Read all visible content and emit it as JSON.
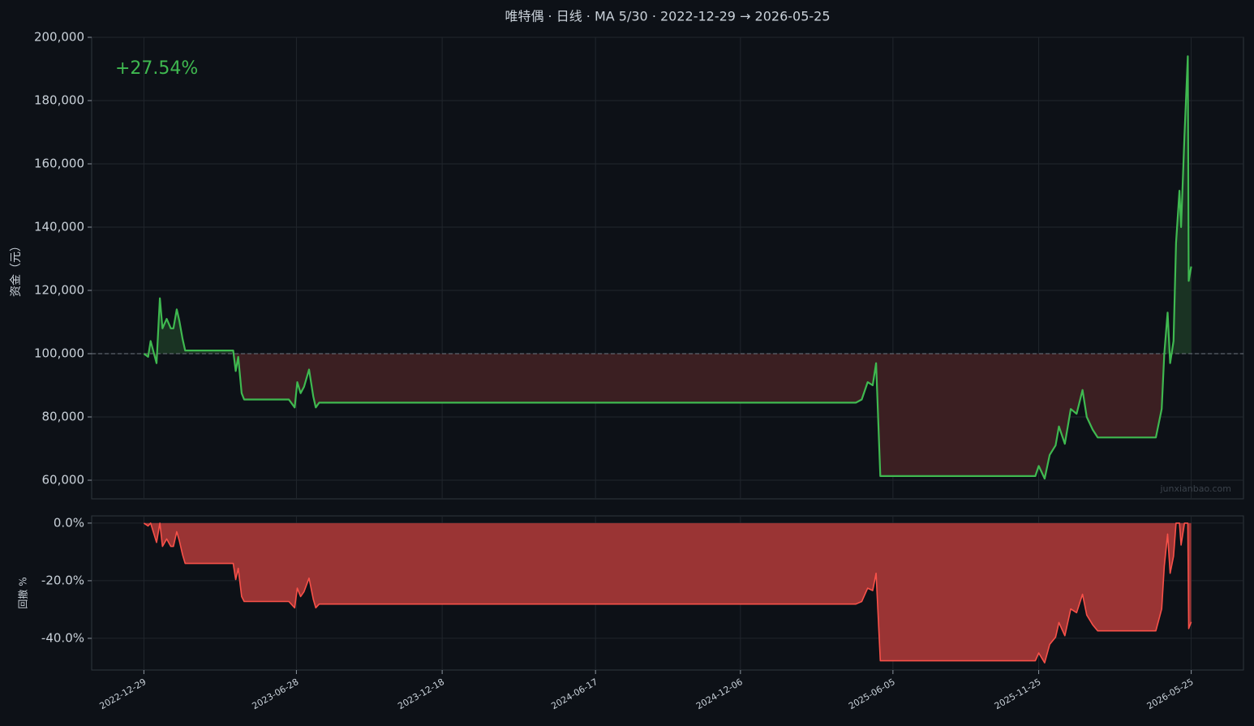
{
  "chart_data": [
    {
      "type": "line",
      "title": "唯特偶 · 日线 · MA 5/30 · 2022-12-29 → 2026-05-25",
      "y_label": "资金（元）",
      "annotation": "+27.54%",
      "watermark": "junxianbao.com",
      "baseline": 100000,
      "grid": true,
      "xlim": [
        "2022-10-28",
        "2026-07-26"
      ],
      "ylim": [
        54100,
        200000
      ],
      "yticks": [
        {
          "value": 60000,
          "label": "60,000"
        },
        {
          "value": 80000,
          "label": "80,000"
        },
        {
          "value": 100000,
          "label": "100,000"
        },
        {
          "value": 120000,
          "label": "120,000"
        },
        {
          "value": 140000,
          "label": "140,000"
        },
        {
          "value": 160000,
          "label": "160,000"
        },
        {
          "value": 180000,
          "label": "180,000"
        },
        {
          "value": 200000,
          "label": "200,000"
        }
      ],
      "x": [
        "2022-12-29",
        "2023-01-03",
        "2023-01-06",
        "2023-01-13",
        "2023-01-17",
        "2023-01-20",
        "2023-01-25",
        "2023-01-30",
        "2023-02-02",
        "2023-02-06",
        "2023-02-09",
        "2023-02-13",
        "2023-02-16",
        "2023-04-14",
        "2023-04-17",
        "2023-04-20",
        "2023-04-24",
        "2023-04-27",
        "2023-06-19",
        "2023-06-26",
        "2023-06-29",
        "2023-07-03",
        "2023-07-07",
        "2023-07-13",
        "2023-07-18",
        "2023-07-21",
        "2023-07-25",
        "2025-04-22",
        "2025-04-29",
        "2025-05-06",
        "2025-05-12",
        "2025-05-16",
        "2025-05-21",
        "2025-11-21",
        "2025-11-25",
        "2025-12-02",
        "2025-12-08",
        "2025-12-15",
        "2025-12-19",
        "2025-12-26",
        "2026-01-02",
        "2026-01-09",
        "2026-01-16",
        "2026-01-21",
        "2026-01-28",
        "2026-02-03",
        "2026-04-13",
        "2026-04-20",
        "2026-04-23",
        "2026-04-27",
        "2026-04-30",
        "2026-05-04",
        "2026-05-07",
        "2026-05-11",
        "2026-05-13",
        "2026-05-17",
        "2026-05-21",
        "2026-05-22",
        "2026-05-25"
      ],
      "series": [
        {
          "color": "#3fb950",
          "fill_up": "#1a3323",
          "fill_down": "#3b1f22",
          "values": [
            100000,
            99000,
            104000,
            97000,
            117500,
            108000,
            111000,
            108000,
            108000,
            114000,
            110500,
            104500,
            101000,
            101000,
            94500,
            99000,
            87500,
            85500,
            85500,
            83000,
            91000,
            87500,
            89500,
            95000,
            86500,
            83000,
            84500,
            84500,
            85500,
            91000,
            90000,
            97000,
            61300,
            61300,
            64500,
            60500,
            68000,
            71000,
            77000,
            71500,
            82500,
            81000,
            88500,
            80000,
            76000,
            73500,
            73500,
            82500,
            100000,
            113000,
            97000,
            104000,
            135000,
            151500,
            140000,
            169000,
            194000,
            123000,
            127540
          ]
        }
      ]
    },
    {
      "type": "area",
      "y_label": "回撤 %",
      "grid": true,
      "xlim": [
        "2022-10-28",
        "2026-07-26"
      ],
      "ylim": [
        -51,
        2.5
      ],
      "yticks": [
        {
          "value": -40,
          "label": "-40.0%"
        },
        {
          "value": -20,
          "label": "-20.0%"
        },
        {
          "value": 0,
          "label": "0.0%"
        }
      ],
      "xticks": [
        "2022-12-29",
        "2023-06-28",
        "2023-12-18",
        "2024-06-17",
        "2024-12-06",
        "2025-06-05",
        "2025-11-25",
        "2026-05-25"
      ],
      "x": [
        "2022-12-29",
        "2023-01-03",
        "2023-01-06",
        "2023-01-13",
        "2023-01-17",
        "2023-01-20",
        "2023-01-25",
        "2023-01-30",
        "2023-02-02",
        "2023-02-06",
        "2023-02-09",
        "2023-02-13",
        "2023-02-16",
        "2023-04-14",
        "2023-04-17",
        "2023-04-20",
        "2023-04-24",
        "2023-04-27",
        "2023-06-19",
        "2023-06-26",
        "2023-06-29",
        "2023-07-03",
        "2023-07-07",
        "2023-07-13",
        "2023-07-18",
        "2023-07-21",
        "2023-07-25",
        "2025-04-22",
        "2025-04-29",
        "2025-05-06",
        "2025-05-12",
        "2025-05-16",
        "2025-05-21",
        "2025-11-21",
        "2025-11-25",
        "2025-12-02",
        "2025-12-08",
        "2025-12-15",
        "2025-12-19",
        "2025-12-26",
        "2026-01-02",
        "2026-01-09",
        "2026-01-16",
        "2026-01-21",
        "2026-01-28",
        "2026-02-03",
        "2026-04-13",
        "2026-04-20",
        "2026-04-23",
        "2026-04-27",
        "2026-04-30",
        "2026-05-04",
        "2026-05-07",
        "2026-05-11",
        "2026-05-13",
        "2026-05-17",
        "2026-05-21",
        "2026-05-22",
        "2026-05-25"
      ],
      "series": [
        {
          "color": "#f85149",
          "fill": "#9a3434",
          "values": [
            0,
            -1.0,
            0,
            -6.7,
            0,
            -8.1,
            -5.5,
            -8.1,
            -8.1,
            -3.0,
            -6.0,
            -11.1,
            -14.0,
            -14.0,
            -19.6,
            -15.7,
            -25.5,
            -27.2,
            -27.2,
            -29.4,
            -22.6,
            -25.5,
            -23.8,
            -19.1,
            -26.4,
            -29.4,
            -28.1,
            -28.1,
            -27.2,
            -22.6,
            -23.4,
            -17.4,
            -47.8,
            -47.8,
            -45.1,
            -48.5,
            -42.1,
            -39.6,
            -34.5,
            -39.1,
            -29.8,
            -31.1,
            -24.7,
            -31.9,
            -35.3,
            -37.4,
            -37.4,
            -29.8,
            -14.9,
            -3.8,
            -17.4,
            -11.5,
            0,
            0,
            -7.6,
            0,
            0,
            -36.6,
            -34.3
          ]
        }
      ]
    }
  ]
}
